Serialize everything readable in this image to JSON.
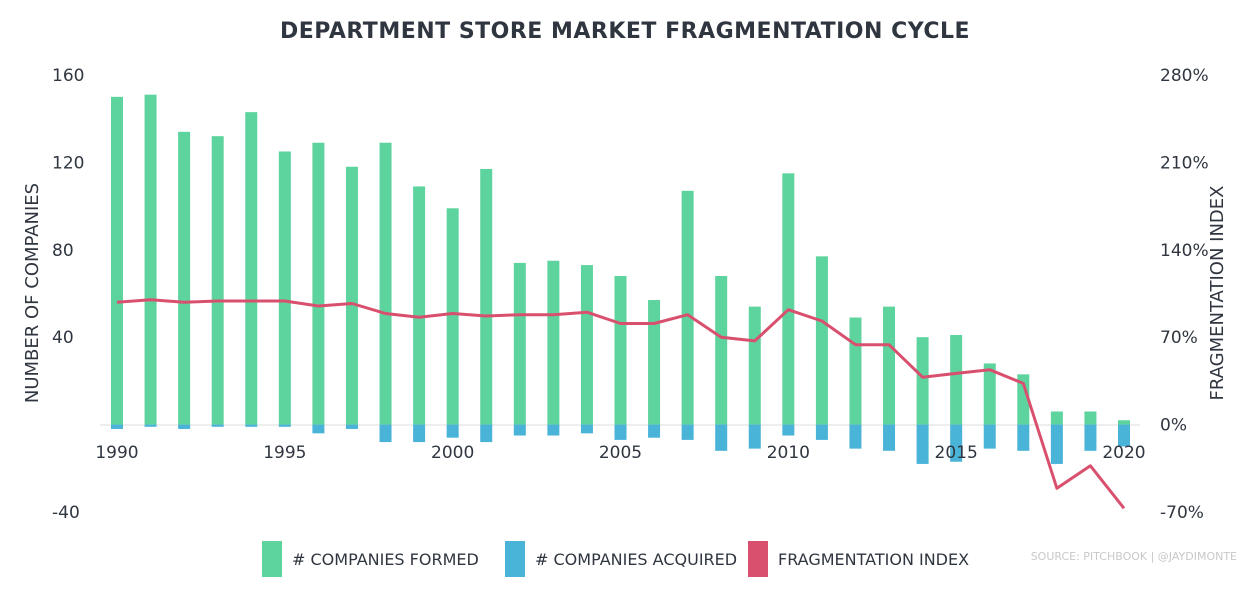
{
  "chart_data": {
    "type": "bar",
    "title": "DEPARTMENT STORE MARKET FRAGMENTATION CYCLE",
    "ylabel": "NUMBER OF COMPANIES",
    "y2label": "FRAGMENTATION INDEX",
    "ylim": [
      -40,
      160
    ],
    "y2lim": [
      -70,
      280
    ],
    "y_ticks": [
      "160",
      "120",
      "80",
      "40",
      "-40"
    ],
    "y2_ticks": [
      "280%",
      "210%",
      "140%",
      "70%",
      "0%",
      "-70%"
    ],
    "x_ticks": [
      "1990",
      "1995",
      "2000",
      "2005",
      "2010",
      "2015",
      "2020"
    ],
    "categories": [
      1990,
      1991,
      1992,
      1993,
      1994,
      1995,
      1996,
      1997,
      1998,
      1999,
      2000,
      2001,
      2002,
      2003,
      2004,
      2005,
      2006,
      2007,
      2008,
      2009,
      2010,
      2011,
      2012,
      2013,
      2014,
      2015,
      2016,
      2017,
      2018,
      2019,
      2020
    ],
    "series": [
      {
        "name": "# COMPANIES FORMED",
        "type": "bar",
        "axis": "left",
        "color": "#5dd39e",
        "values": [
          150,
          151,
          134,
          132,
          143,
          125,
          129,
          118,
          129,
          109,
          99,
          117,
          74,
          75,
          73,
          68,
          57,
          107,
          68,
          54,
          115,
          77,
          49,
          54,
          40,
          41,
          28,
          23,
          6,
          6,
          2
        ]
      },
      {
        "name": "# COMPANIES ACQUIRED",
        "type": "bar",
        "axis": "left",
        "color": "#4ab3d8",
        "values": [
          -2,
          -1,
          -2,
          -1,
          -1,
          -1,
          -4,
          -2,
          -8,
          -8,
          -6,
          -8,
          -5,
          -5,
          -4,
          -7,
          -6,
          -7,
          -12,
          -11,
          -5,
          -7,
          -11,
          -12,
          -18,
          -17,
          -11,
          -12,
          -18,
          -12,
          -10
        ]
      },
      {
        "name": "FRAGMENTATION INDEX",
        "type": "line",
        "axis": "right",
        "color": "#d9506f",
        "values": [
          98,
          100,
          98,
          99,
          99,
          99,
          95,
          97,
          89,
          86,
          89,
          87,
          88,
          88,
          90,
          81,
          81,
          88,
          70,
          67,
          92,
          83,
          64,
          64,
          38,
          41,
          44,
          33,
          -51,
          -33,
          -67
        ]
      }
    ],
    "legend_position": "bottom",
    "grid": false
  },
  "source_note": "SOURCE: PITCHBOOK | @JAYDIMONTE"
}
